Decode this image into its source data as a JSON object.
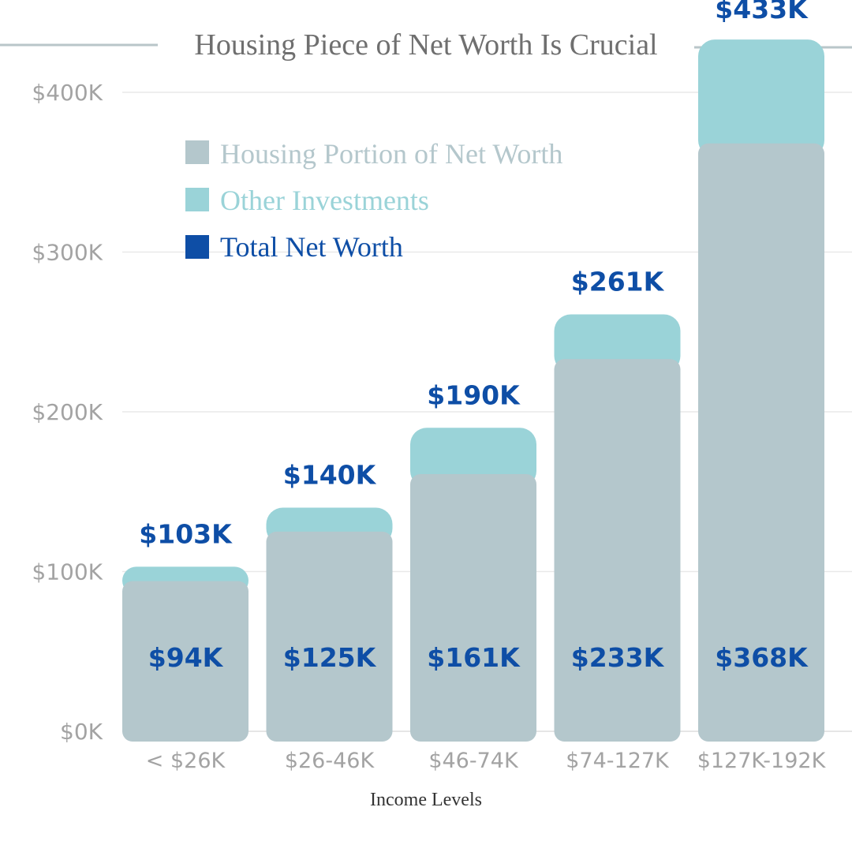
{
  "chart_data": {
    "type": "bar",
    "title": "Housing Piece of Net Worth Is Crucial",
    "xlabel": "Income Levels",
    "ylabel": "",
    "ylim": [
      0,
      400
    ],
    "yticks": [
      0,
      100,
      200,
      300,
      400
    ],
    "ytick_labels": [
      "$0K",
      "$100K",
      "$200K",
      "$300K",
      "$400K"
    ],
    "categories": [
      "< $26K",
      "$26-46K",
      "$46-74K",
      "$74-127K",
      "$127K-192K"
    ],
    "series": [
      {
        "name": "Housing Portion of Net Worth",
        "values": [
          94,
          125,
          161,
          233,
          368
        ],
        "labels": [
          "$94K",
          "$125K",
          "$161K",
          "$233K",
          "$368K"
        ]
      },
      {
        "name": "Other Investments",
        "values": [
          9,
          15,
          29,
          28,
          65
        ]
      },
      {
        "name": "Total Net Worth",
        "values": [
          103,
          140,
          190,
          261,
          433
        ],
        "labels": [
          "$103K",
          "$140K",
          "$190K",
          "$261K",
          "$433K"
        ]
      }
    ],
    "legend_position": "top-left",
    "grid": true,
    "colors": {
      "housing": "#b4c7cc",
      "other": "#9ad3d8",
      "total": "#0e4ea6",
      "grid": "#e9e9e9",
      "title_rule": "#b9c6c9"
    }
  }
}
